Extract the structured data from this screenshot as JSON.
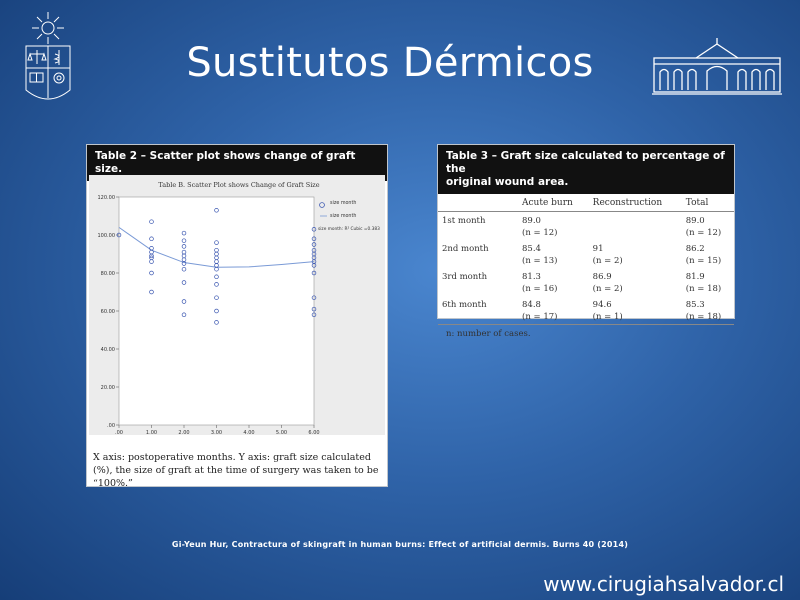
{
  "slide": {
    "title": "Sustitutos Dérmicos",
    "citation": "Gi-Yeun Hur, Contractura of skingraft in human burns: Effect of artificial dermis. Burns 40 (2014)",
    "website": "www.cirugiahsalvador.cl"
  },
  "table2": {
    "header": "Table 2 – Scatter plot shows change of graft size.",
    "caption": "X axis: postoperative months. Y axis: graft size calculated (%), the size of graft at the time of surgery was taken to be “100%.”"
  },
  "table3": {
    "header_line1": "Table 3 – Graft size calculated to percentage of the",
    "header_line2": "original wound area.",
    "columns": [
      "",
      "Acute burn",
      "Reconstruction",
      "Total"
    ],
    "rows": [
      {
        "label": "1st month",
        "acute": "89.0",
        "acute_n": "(n = 12)",
        "recon": "",
        "recon_n": "",
        "total": "89.0",
        "total_n": "(n = 12)"
      },
      {
        "label": "2nd month",
        "acute": "85.4",
        "acute_n": "(n = 13)",
        "recon": "91",
        "recon_n": "(n = 2)",
        "total": "86.2",
        "total_n": "(n = 15)"
      },
      {
        "label": "3rd month",
        "acute": "81.3",
        "acute_n": "(n = 16)",
        "recon": "86.9",
        "recon_n": "(n = 2)",
        "total": "81.9",
        "total_n": "(n = 18)"
      },
      {
        "label": "6th month",
        "acute": "84.8",
        "acute_n": "(n = 17)",
        "recon": "94.6",
        "recon_n": "(n = 1)",
        "total": "85.3",
        "total_n": "(n = 18)"
      }
    ],
    "note": "n: number of cases."
  },
  "chart_data": {
    "type": "scatter",
    "title": "Table B.   Scatter Plot shows Change of Graft Size",
    "xlabel": "",
    "ylabel": "",
    "xlim": [
      0,
      6
    ],
    "ylim": [
      0,
      120
    ],
    "x_ticks": [
      ".00",
      "1.00",
      "2.00",
      "3.00",
      "4.00",
      "5.00",
      "6.00"
    ],
    "y_ticks": [
      ".00",
      "20.00",
      "40.00",
      "60.00",
      "80.00",
      "100.00",
      "120.00"
    ],
    "legend": {
      "placement": "right",
      "entries": [
        "size month",
        "size month",
        "size month: R² Cubic =0.383"
      ]
    },
    "points": [
      {
        "x": 0,
        "y": 100
      },
      {
        "x": 1,
        "y": 107
      },
      {
        "x": 1,
        "y": 98
      },
      {
        "x": 1,
        "y": 93
      },
      {
        "x": 1,
        "y": 91
      },
      {
        "x": 1,
        "y": 89
      },
      {
        "x": 1,
        "y": 88
      },
      {
        "x": 1,
        "y": 86
      },
      {
        "x": 1,
        "y": 80
      },
      {
        "x": 1,
        "y": 70
      },
      {
        "x": 2,
        "y": 101
      },
      {
        "x": 2,
        "y": 97
      },
      {
        "x": 2,
        "y": 94
      },
      {
        "x": 2,
        "y": 91
      },
      {
        "x": 2,
        "y": 89
      },
      {
        "x": 2,
        "y": 87
      },
      {
        "x": 2,
        "y": 85
      },
      {
        "x": 2,
        "y": 82
      },
      {
        "x": 2,
        "y": 75
      },
      {
        "x": 2,
        "y": 65
      },
      {
        "x": 2,
        "y": 58
      },
      {
        "x": 3,
        "y": 113
      },
      {
        "x": 3,
        "y": 96
      },
      {
        "x": 3,
        "y": 92
      },
      {
        "x": 3,
        "y": 90
      },
      {
        "x": 3,
        "y": 88
      },
      {
        "x": 3,
        "y": 86
      },
      {
        "x": 3,
        "y": 84
      },
      {
        "x": 3,
        "y": 82
      },
      {
        "x": 3,
        "y": 78
      },
      {
        "x": 3,
        "y": 74
      },
      {
        "x": 3,
        "y": 67
      },
      {
        "x": 3,
        "y": 60
      },
      {
        "x": 3,
        "y": 54
      },
      {
        "x": 6,
        "y": 103
      },
      {
        "x": 6,
        "y": 98
      },
      {
        "x": 6,
        "y": 95
      },
      {
        "x": 6,
        "y": 92
      },
      {
        "x": 6,
        "y": 90
      },
      {
        "x": 6,
        "y": 88
      },
      {
        "x": 6,
        "y": 86
      },
      {
        "x": 6,
        "y": 84
      },
      {
        "x": 6,
        "y": 80
      },
      {
        "x": 6,
        "y": 67
      },
      {
        "x": 6,
        "y": 61
      },
      {
        "x": 6,
        "y": 58
      }
    ],
    "fit_curve": [
      {
        "x": 0,
        "y": 104
      },
      {
        "x": 1,
        "y": 92
      },
      {
        "x": 2,
        "y": 85.5
      },
      {
        "x": 3,
        "y": 83
      },
      {
        "x": 4,
        "y": 83.2
      },
      {
        "x": 5,
        "y": 84.5
      },
      {
        "x": 6,
        "y": 86
      }
    ],
    "colors": {
      "points": "#3a56b0",
      "curve": "#7a9ad6"
    }
  }
}
